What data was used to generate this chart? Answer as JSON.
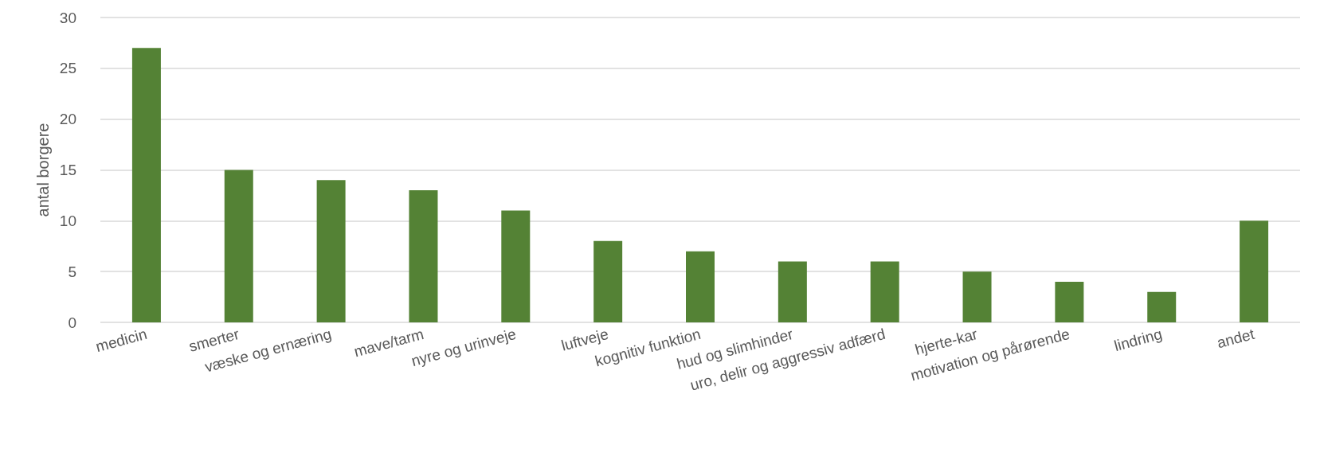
{
  "chart_data": {
    "type": "bar",
    "ylabel": "antal borgere",
    "categories": [
      "medicin",
      "smerter",
      "væske og ernæring",
      "mave/tarm",
      "nyre og urinveje",
      "luftveje",
      "kognitiv funktion",
      "hud og slimhinder",
      "uro, delir og aggressiv adfærd",
      "hjerte-kar",
      "motivation og pårørende",
      "lindring",
      "andet"
    ],
    "values": [
      27,
      15,
      14,
      13,
      11,
      8,
      7,
      6,
      6,
      5,
      4,
      3,
      10
    ],
    "color": "#548235",
    "ylim": [
      0,
      30
    ],
    "yticks": [
      0,
      5,
      10,
      15,
      20,
      25,
      30
    ],
    "grid": "y"
  }
}
